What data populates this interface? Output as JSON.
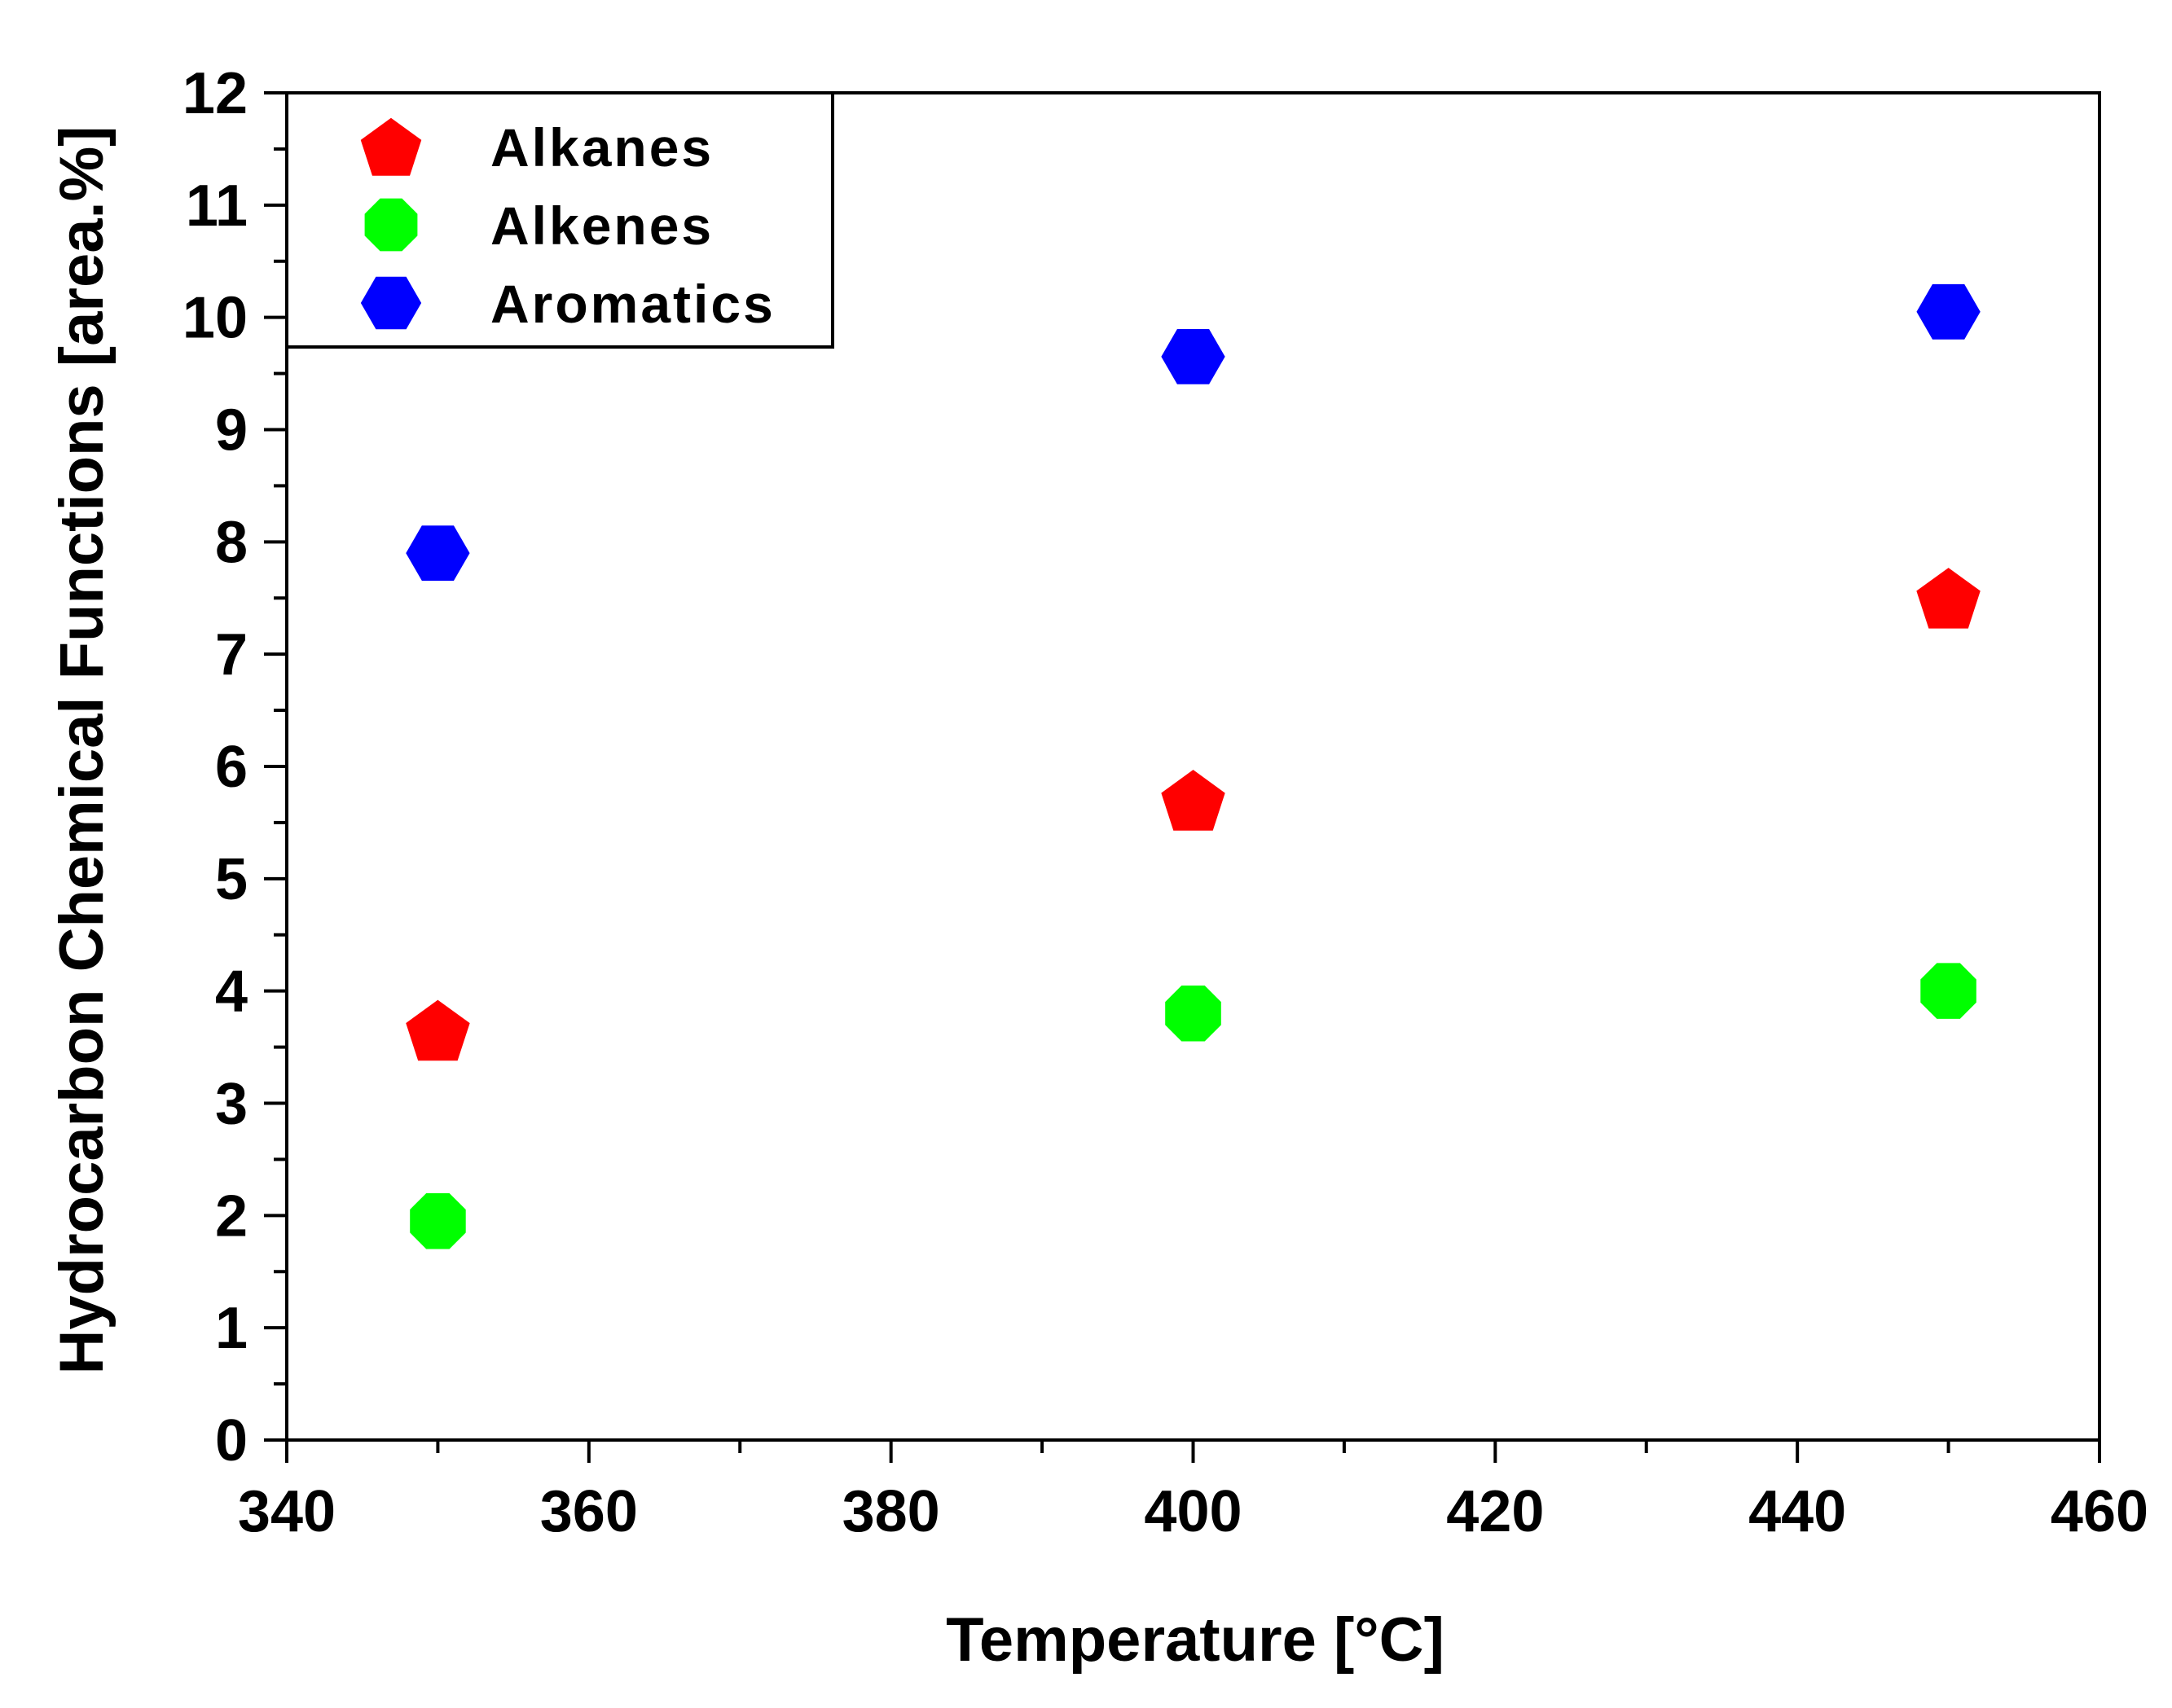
{
  "chart_data": {
    "type": "scatter",
    "xlabel": "Temperature [°C]",
    "ylabel": "Hydrocarbon Chemical Functions [area.%]",
    "xlim": [
      340,
      460
    ],
    "ylim": [
      0,
      12
    ],
    "xticks": [
      340,
      360,
      380,
      400,
      420,
      440,
      460
    ],
    "yticks": [
      0,
      1,
      2,
      3,
      4,
      5,
      6,
      7,
      8,
      9,
      10,
      11,
      12
    ],
    "grid": false,
    "legend_position": "top-left",
    "series": [
      {
        "name": "Alkanes",
        "marker": "pentagon",
        "color": "#ff0000",
        "x": [
          350,
          400,
          450
        ],
        "y": [
          3.65,
          5.7,
          7.5
        ]
      },
      {
        "name": "Alkenes",
        "marker": "octagon",
        "color": "#00ff00",
        "x": [
          350,
          400,
          450
        ],
        "y": [
          1.95,
          3.8,
          4.0
        ]
      },
      {
        "name": "Aromatics",
        "marker": "hexagon",
        "color": "#0000ff",
        "x": [
          350,
          400,
          450
        ],
        "y": [
          7.9,
          9.65,
          10.05
        ]
      }
    ]
  }
}
